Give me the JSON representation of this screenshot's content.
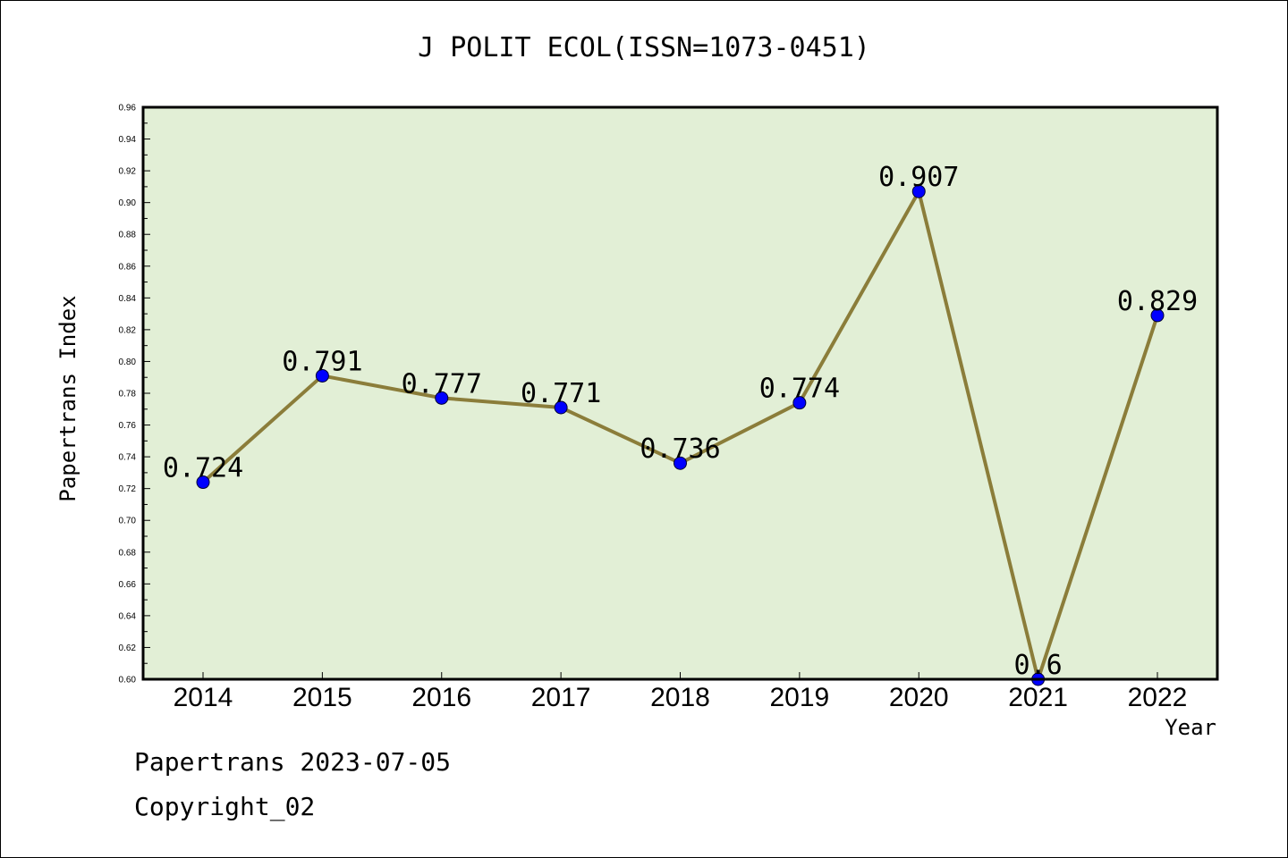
{
  "colors": {
    "plot_background": "#e2efd6",
    "line": "#8b7d3a",
    "marker": "#0000ff",
    "axis": "#000000"
  },
  "footer": {
    "line1": "Papertrans 2023-07-05",
    "line2": "Copyright_02"
  },
  "chart_data": {
    "type": "line",
    "title": "J POLIT ECOL(ISSN=1073-0451)",
    "xlabel": "Year",
    "ylabel": "Papertrans Index",
    "x": [
      "2014",
      "2015",
      "2016",
      "2017",
      "2018",
      "2019",
      "2020",
      "2021",
      "2022"
    ],
    "series": [
      {
        "values": [
          0.724,
          0.791,
          0.777,
          0.771,
          0.736,
          0.774,
          0.907,
          0.6,
          0.829
        ],
        "data_labels": [
          "0.724",
          "0.791",
          "0.777",
          "0.771",
          "0.736",
          "0.774",
          "0.907",
          "0.6",
          "0.829"
        ]
      }
    ],
    "ylim": [
      0.6,
      0.96
    ],
    "yticks": [
      "0.60",
      "0.62",
      "0.64",
      "0.66",
      "0.68",
      "0.70",
      "0.72",
      "0.74",
      "0.76",
      "0.78",
      "0.80",
      "0.82",
      "0.84",
      "0.86",
      "0.88",
      "0.90",
      "0.92",
      "0.94",
      "0.96"
    ],
    "grid": false,
    "legend": "none"
  }
}
